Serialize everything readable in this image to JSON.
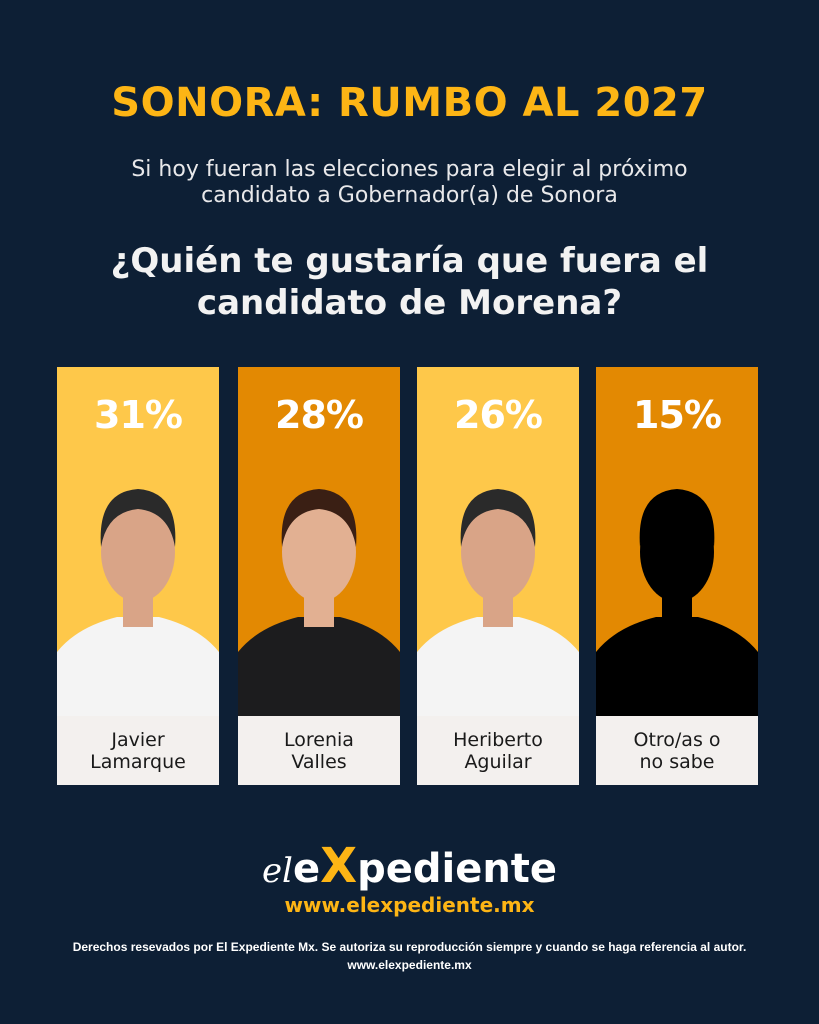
{
  "header": {
    "title": "SONORA: RUMBO AL 2027",
    "subtitle_line1": "Si hoy fueran las elecciones para elegir al próximo",
    "subtitle_line2": "candidato a Gobernador(a) de Sonora",
    "question_line1": "¿Quién te gustaría que fuera el",
    "question_line2": "candidato de Morena?"
  },
  "colors": {
    "background": "#0d1f35",
    "accent": "#fdb515",
    "card_light": "#fec84a",
    "card_dark": "#e38902",
    "name_box": "#f3f0ee"
  },
  "chart_data": {
    "type": "bar",
    "categories": [
      "Javier Lamarque",
      "Lorenia Valles",
      "Heriberto Aguilar",
      "Otro/as o no sabe"
    ],
    "values": [
      31,
      28,
      26,
      15
    ],
    "labels": [
      "31%",
      "28%",
      "26%",
      "15%"
    ]
  },
  "cards": [
    {
      "pct": "31%",
      "name1": "Javier",
      "name2": "Lamarque",
      "color": "#fec84a",
      "photo": "man-photo"
    },
    {
      "pct": "28%",
      "name1": "Lorenia",
      "name2": "Valles",
      "color": "#e38902",
      "photo": "woman-photo"
    },
    {
      "pct": "26%",
      "name1": "Heriberto",
      "name2": "Aguilar",
      "color": "#fec84a",
      "photo": "man-photo"
    },
    {
      "pct": "15%",
      "name1": "Otro/as o",
      "name2": "no sabe",
      "color": "#e38902",
      "photo": "silhouette-icon"
    }
  ],
  "footer": {
    "logo_el": "el",
    "logo_x": "X",
    "logo_rest": "pediente",
    "logo_e": "e",
    "url": "www.elexpediente.mx",
    "rights": "Derechos resevados por El Expediente Mx. Se autoriza su reproducción siempre y cuando se haga referencia al autor.",
    "rights_url": "www.elexpediente.mx"
  }
}
